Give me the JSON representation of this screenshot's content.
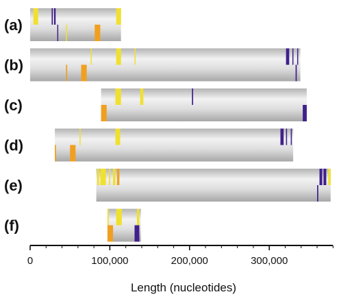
{
  "chart_data": {
    "type": "genome-map",
    "xlabel": "Length (nucleotides)",
    "xlim": [
      0,
      380000
    ],
    "x_ticks": [
      {
        "value": 0,
        "label": "0"
      },
      {
        "value": 100000,
        "label": "100,000"
      },
      {
        "value": 200000,
        "label": "200,000"
      },
      {
        "value": 300000,
        "label": "300,000"
      }
    ],
    "colors": {
      "yellow": "#f0e030",
      "orange": "#f0a020",
      "purple": "#40208c",
      "bar_light": "#f2f2f2",
      "bar_dark": "#a8a8a8"
    },
    "genomes": [
      {
        "label": "(a)",
        "start": 0,
        "end": 114000,
        "top_features": [
          {
            "pos": 4000,
            "width": 6000,
            "color": "yellow"
          },
          {
            "pos": 27000,
            "width": 1500,
            "color": "purple"
          },
          {
            "pos": 30000,
            "width": 2000,
            "color": "purple"
          },
          {
            "pos": 108000,
            "width": 6000,
            "color": "yellow"
          }
        ],
        "bottom_features": [
          {
            "pos": 34000,
            "width": 1200,
            "color": "purple"
          },
          {
            "pos": 45000,
            "width": 1000,
            "color": "yellow"
          },
          {
            "pos": 81000,
            "width": 7000,
            "color": "orange"
          }
        ]
      },
      {
        "label": "(b)",
        "start": 0,
        "end": 339000,
        "top_features": [
          {
            "pos": 76000,
            "width": 1200,
            "color": "yellow"
          },
          {
            "pos": 108000,
            "width": 6000,
            "color": "yellow"
          },
          {
            "pos": 131000,
            "width": 1000,
            "color": "yellow"
          },
          {
            "pos": 321000,
            "width": 4000,
            "color": "purple"
          },
          {
            "pos": 329000,
            "width": 1200,
            "color": "purple"
          },
          {
            "pos": 335000,
            "width": 1200,
            "color": "purple"
          }
        ],
        "bottom_features": [
          {
            "pos": 45000,
            "width": 1500,
            "color": "orange"
          },
          {
            "pos": 64000,
            "width": 7000,
            "color": "orange"
          },
          {
            "pos": 333000,
            "width": 1500,
            "color": "purple"
          }
        ]
      },
      {
        "label": "(c)",
        "start": 89000,
        "end": 347000,
        "top_features": [
          {
            "pos": 107000,
            "width": 7000,
            "color": "yellow"
          },
          {
            "pos": 138000,
            "width": 4000,
            "color": "yellow"
          },
          {
            "pos": 203000,
            "width": 1500,
            "color": "purple"
          }
        ],
        "bottom_features": [
          {
            "pos": 89000,
            "width": 7000,
            "color": "orange"
          },
          {
            "pos": 342000,
            "width": 5000,
            "color": "purple"
          }
        ]
      },
      {
        "label": "(d)",
        "start": 31000,
        "end": 330000,
        "top_features": [
          {
            "pos": 62000,
            "width": 1200,
            "color": "yellow"
          },
          {
            "pos": 107000,
            "width": 6000,
            "color": "yellow"
          },
          {
            "pos": 314000,
            "width": 4000,
            "color": "purple"
          },
          {
            "pos": 321000,
            "width": 1200,
            "color": "purple"
          },
          {
            "pos": 327000,
            "width": 1200,
            "color": "purple"
          }
        ],
        "bottom_features": [
          {
            "pos": 31000,
            "width": 1500,
            "color": "orange"
          },
          {
            "pos": 50000,
            "width": 7000,
            "color": "orange"
          }
        ]
      },
      {
        "label": "(e)",
        "start": 83000,
        "end": 377000,
        "top_features": [
          {
            "pos": 84000,
            "width": 2500,
            "color": "yellow"
          },
          {
            "pos": 88000,
            "width": 7000,
            "color": "yellow"
          },
          {
            "pos": 99000,
            "width": 1500,
            "color": "yellow"
          },
          {
            "pos": 104000,
            "width": 3000,
            "color": "yellow"
          },
          {
            "pos": 109000,
            "width": 3000,
            "color": "orange"
          },
          {
            "pos": 363000,
            "width": 3500,
            "color": "purple"
          },
          {
            "pos": 368000,
            "width": 3500,
            "color": "purple"
          },
          {
            "pos": 374000,
            "width": 3000,
            "color": "yellow"
          }
        ],
        "bottom_features": [
          {
            "pos": 360000,
            "width": 1500,
            "color": "purple"
          }
        ]
      },
      {
        "label": "(f)",
        "start": 97000,
        "end": 139000,
        "top_features": [
          {
            "pos": 97000,
            "width": 1500,
            "color": "yellow"
          },
          {
            "pos": 108000,
            "width": 7000,
            "color": "yellow"
          },
          {
            "pos": 134000,
            "width": 3000,
            "color": "yellow"
          }
        ],
        "bottom_features": [
          {
            "pos": 97000,
            "width": 7000,
            "color": "orange"
          },
          {
            "pos": 131000,
            "width": 6000,
            "color": "purple"
          }
        ]
      }
    ]
  }
}
